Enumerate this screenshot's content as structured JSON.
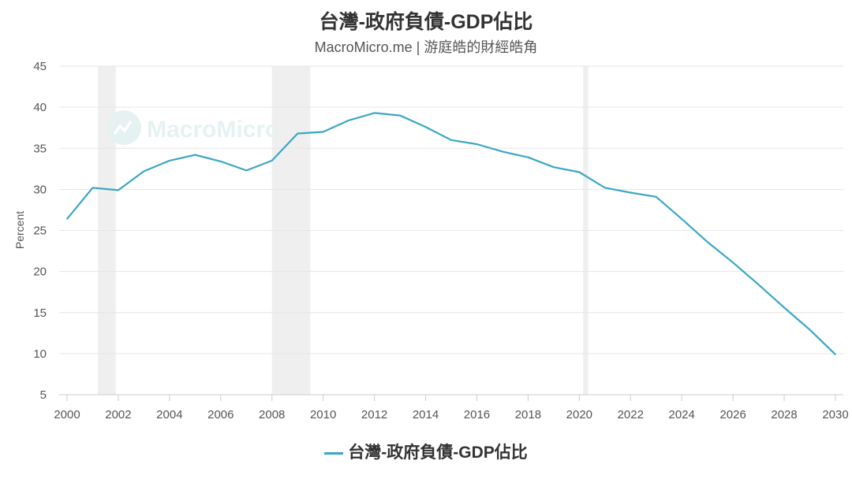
{
  "chart_data": {
    "type": "line",
    "title": "台灣-政府負債-GDP佔比",
    "subtitle": "MacroMicro.me | 游庭皓的財經皓角",
    "ylabel": "Percent",
    "xlabel": "",
    "ylim": [
      5,
      45
    ],
    "yticks": [
      5,
      10,
      15,
      20,
      25,
      30,
      35,
      40,
      45
    ],
    "xlim": [
      2000,
      2030
    ],
    "xticks": [
      2000,
      2002,
      2004,
      2006,
      2008,
      2010,
      2012,
      2014,
      2016,
      2018,
      2020,
      2022,
      2024,
      2026,
      2028,
      2030
    ],
    "grid": true,
    "legend_position": "bottom",
    "shaded_periods": [
      [
        2001.2,
        2001.9
      ],
      [
        2008.0,
        2009.5
      ],
      [
        2020.15,
        2020.35
      ]
    ],
    "series": [
      {
        "name": "台灣-政府負債-GDP佔比",
        "color": "#3aa7c4",
        "x": [
          2000,
          2001,
          2002,
          2003,
          2004,
          2005,
          2006,
          2007,
          2008,
          2009,
          2010,
          2011,
          2012,
          2013,
          2014,
          2015,
          2016,
          2017,
          2018,
          2019,
          2020,
          2021,
          2022,
          2023,
          2024,
          2025,
          2026,
          2027,
          2028,
          2029,
          2030
        ],
        "values": [
          26.4,
          30.2,
          29.9,
          32.2,
          33.5,
          34.2,
          33.4,
          32.3,
          33.5,
          36.8,
          37.0,
          38.4,
          39.3,
          39.0,
          37.6,
          36.0,
          35.5,
          34.6,
          33.9,
          32.7,
          32.1,
          30.2,
          29.6,
          29.1,
          26.4,
          23.6,
          21.1,
          18.4,
          15.6,
          12.9,
          9.9
        ]
      }
    ]
  },
  "watermark": "MacroMicro",
  "watermark_icon": "macromicro-logo-icon",
  "legend": {
    "label": "台灣-政府負債-GDP佔比"
  }
}
